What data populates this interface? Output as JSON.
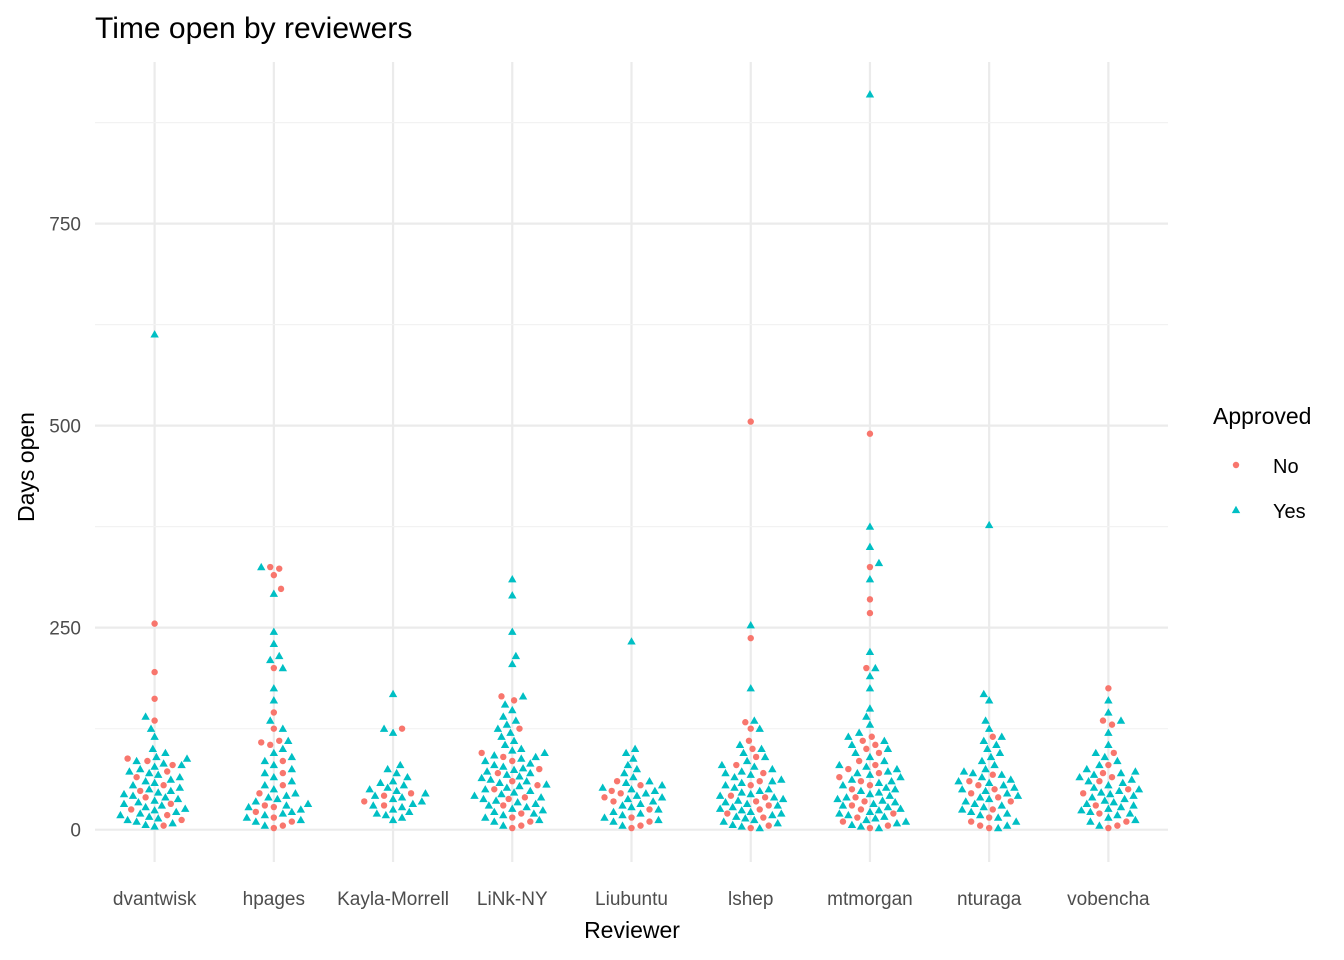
{
  "chart_data": {
    "type": "scatter",
    "variant": "beeswarm",
    "title": "Time open by reviewers",
    "xlabel": "Reviewer",
    "ylabel": "Days open",
    "categories": [
      "dvantwisk",
      "hpages",
      "Kayla-Morrell",
      "LiNk-NY",
      "Liubuntu",
      "lshep",
      "mtmorgan",
      "nturaga",
      "vobencha"
    ],
    "y_ticks": [
      0,
      250,
      500,
      750
    ],
    "ylim": [
      -40,
      950
    ],
    "grid": true,
    "legend": {
      "title": "Approved",
      "position": "right",
      "entries": [
        {
          "label": "No",
          "color": "#F8766D",
          "shape": "circle"
        },
        {
          "label": "Yes",
          "color": "#00BFC4",
          "shape": "triangle"
        }
      ]
    },
    "series": [
      {
        "name": "No",
        "points": {
          "dvantwisk": [
            255,
            195,
            162,
            135,
            88,
            85,
            80,
            72,
            65,
            55,
            48,
            40,
            32,
            25,
            18,
            12,
            5
          ],
          "hpages": [
            325,
            323,
            315,
            298,
            200,
            145,
            125,
            110,
            108,
            105,
            85,
            70,
            55,
            45,
            30,
            28,
            22,
            15,
            10,
            5,
            2
          ],
          "Kayla-Morrell": [
            125,
            45,
            42,
            35,
            30
          ],
          "LiNk-NY": [
            165,
            160,
            125,
            95,
            90,
            85,
            75,
            70,
            60,
            55,
            50,
            40,
            38,
            30,
            20,
            15,
            10,
            5,
            2
          ],
          "Liubuntu": [
            60,
            55,
            48,
            45,
            40,
            35,
            25,
            15,
            10,
            5,
            2
          ],
          "lshep": [
            505,
            237,
            133,
            125,
            110,
            100,
            90,
            80,
            70,
            60,
            55,
            42,
            40,
            35,
            30,
            25,
            20,
            15,
            5,
            2
          ],
          "mtmorgan": [
            490,
            325,
            285,
            268,
            200,
            115,
            110,
            105,
            100,
            95,
            85,
            80,
            75,
            70,
            65,
            60,
            55,
            50,
            40,
            35,
            30,
            25,
            20,
            15,
            10,
            5,
            2
          ],
          "nturaga": [
            115,
            68,
            60,
            55,
            50,
            45,
            40,
            35,
            25,
            15,
            10,
            5,
            2
          ],
          "vobencha": [
            175,
            135,
            130,
            95,
            80,
            70,
            65,
            60,
            50,
            45,
            30,
            20,
            10,
            5,
            2
          ]
        }
      },
      {
        "name": "Yes",
        "points": {
          "dvantwisk": [
            613,
            140,
            125,
            115,
            100,
            95,
            90,
            88,
            85,
            82,
            80,
            78,
            75,
            72,
            70,
            68,
            65,
            62,
            60,
            58,
            55,
            52,
            50,
            48,
            46,
            44,
            42,
            40,
            38,
            36,
            34,
            32,
            30,
            28,
            26,
            24,
            22,
            20,
            18,
            16,
            14,
            12,
            10,
            8,
            6,
            4
          ],
          "hpages": [
            325,
            292,
            245,
            230,
            215,
            210,
            200,
            175,
            160,
            135,
            125,
            110,
            100,
            95,
            90,
            85,
            80,
            75,
            70,
            65,
            60,
            55,
            50,
            45,
            42,
            40,
            38,
            35,
            32,
            30,
            28,
            25,
            22,
            20,
            18,
            15,
            12,
            10,
            5
          ],
          "Kayla-Morrell": [
            168,
            125,
            120,
            80,
            75,
            70,
            65,
            60,
            58,
            55,
            52,
            50,
            48,
            45,
            42,
            40,
            38,
            35,
            32,
            30,
            28,
            25,
            22,
            20,
            18,
            15,
            12
          ],
          "LiNk-NY": [
            310,
            290,
            245,
            215,
            205,
            165,
            155,
            148,
            140,
            135,
            130,
            125,
            120,
            115,
            110,
            105,
            100,
            98,
            95,
            92,
            90,
            88,
            85,
            82,
            80,
            78,
            76,
            74,
            72,
            70,
            68,
            66,
            64,
            62,
            60,
            58,
            56,
            54,
            52,
            50,
            48,
            46,
            44,
            42,
            40,
            38,
            36,
            34,
            32,
            30,
            28,
            26,
            24,
            22,
            20,
            18,
            15,
            12,
            10,
            5
          ],
          "Liubuntu": [
            233,
            100,
            95,
            88,
            80,
            75,
            70,
            65,
            60,
            58,
            55,
            52,
            50,
            48,
            45,
            42,
            40,
            38,
            35,
            32,
            30,
            28,
            25,
            22,
            20,
            18,
            15,
            12,
            10,
            5
          ],
          "lshep": [
            253,
            175,
            135,
            125,
            105,
            100,
            95,
            90,
            85,
            80,
            78,
            75,
            72,
            70,
            68,
            65,
            62,
            60,
            58,
            55,
            52,
            50,
            48,
            46,
            44,
            42,
            40,
            38,
            36,
            34,
            32,
            30,
            28,
            26,
            24,
            22,
            20,
            18,
            16,
            14,
            12,
            10,
            8,
            6,
            4,
            2
          ],
          "mtmorgan": [
            910,
            375,
            350,
            330,
            310,
            220,
            200,
            190,
            175,
            150,
            140,
            130,
            120,
            115,
            110,
            105,
            100,
            95,
            90,
            85,
            80,
            78,
            75,
            72,
            70,
            68,
            65,
            62,
            60,
            58,
            55,
            52,
            50,
            48,
            46,
            44,
            42,
            40,
            38,
            36,
            34,
            32,
            30,
            28,
            26,
            24,
            22,
            20,
            18,
            16,
            14,
            12,
            10,
            8,
            6,
            4,
            2
          ],
          "nturaga": [
            377,
            168,
            160,
            135,
            125,
            115,
            110,
            105,
            100,
            95,
            90,
            85,
            80,
            75,
            72,
            70,
            68,
            65,
            62,
            60,
            58,
            55,
            52,
            50,
            48,
            45,
            42,
            40,
            38,
            35,
            32,
            30,
            28,
            25,
            22,
            20,
            18,
            15,
            10,
            5,
            2
          ],
          "vobencha": [
            160,
            145,
            135,
            120,
            105,
            95,
            90,
            85,
            80,
            75,
            72,
            70,
            68,
            65,
            62,
            60,
            58,
            55,
            52,
            50,
            48,
            46,
            44,
            42,
            40,
            38,
            36,
            34,
            32,
            30,
            28,
            26,
            24,
            22,
            20,
            18,
            15,
            12,
            10,
            5
          ]
        }
      }
    ]
  }
}
